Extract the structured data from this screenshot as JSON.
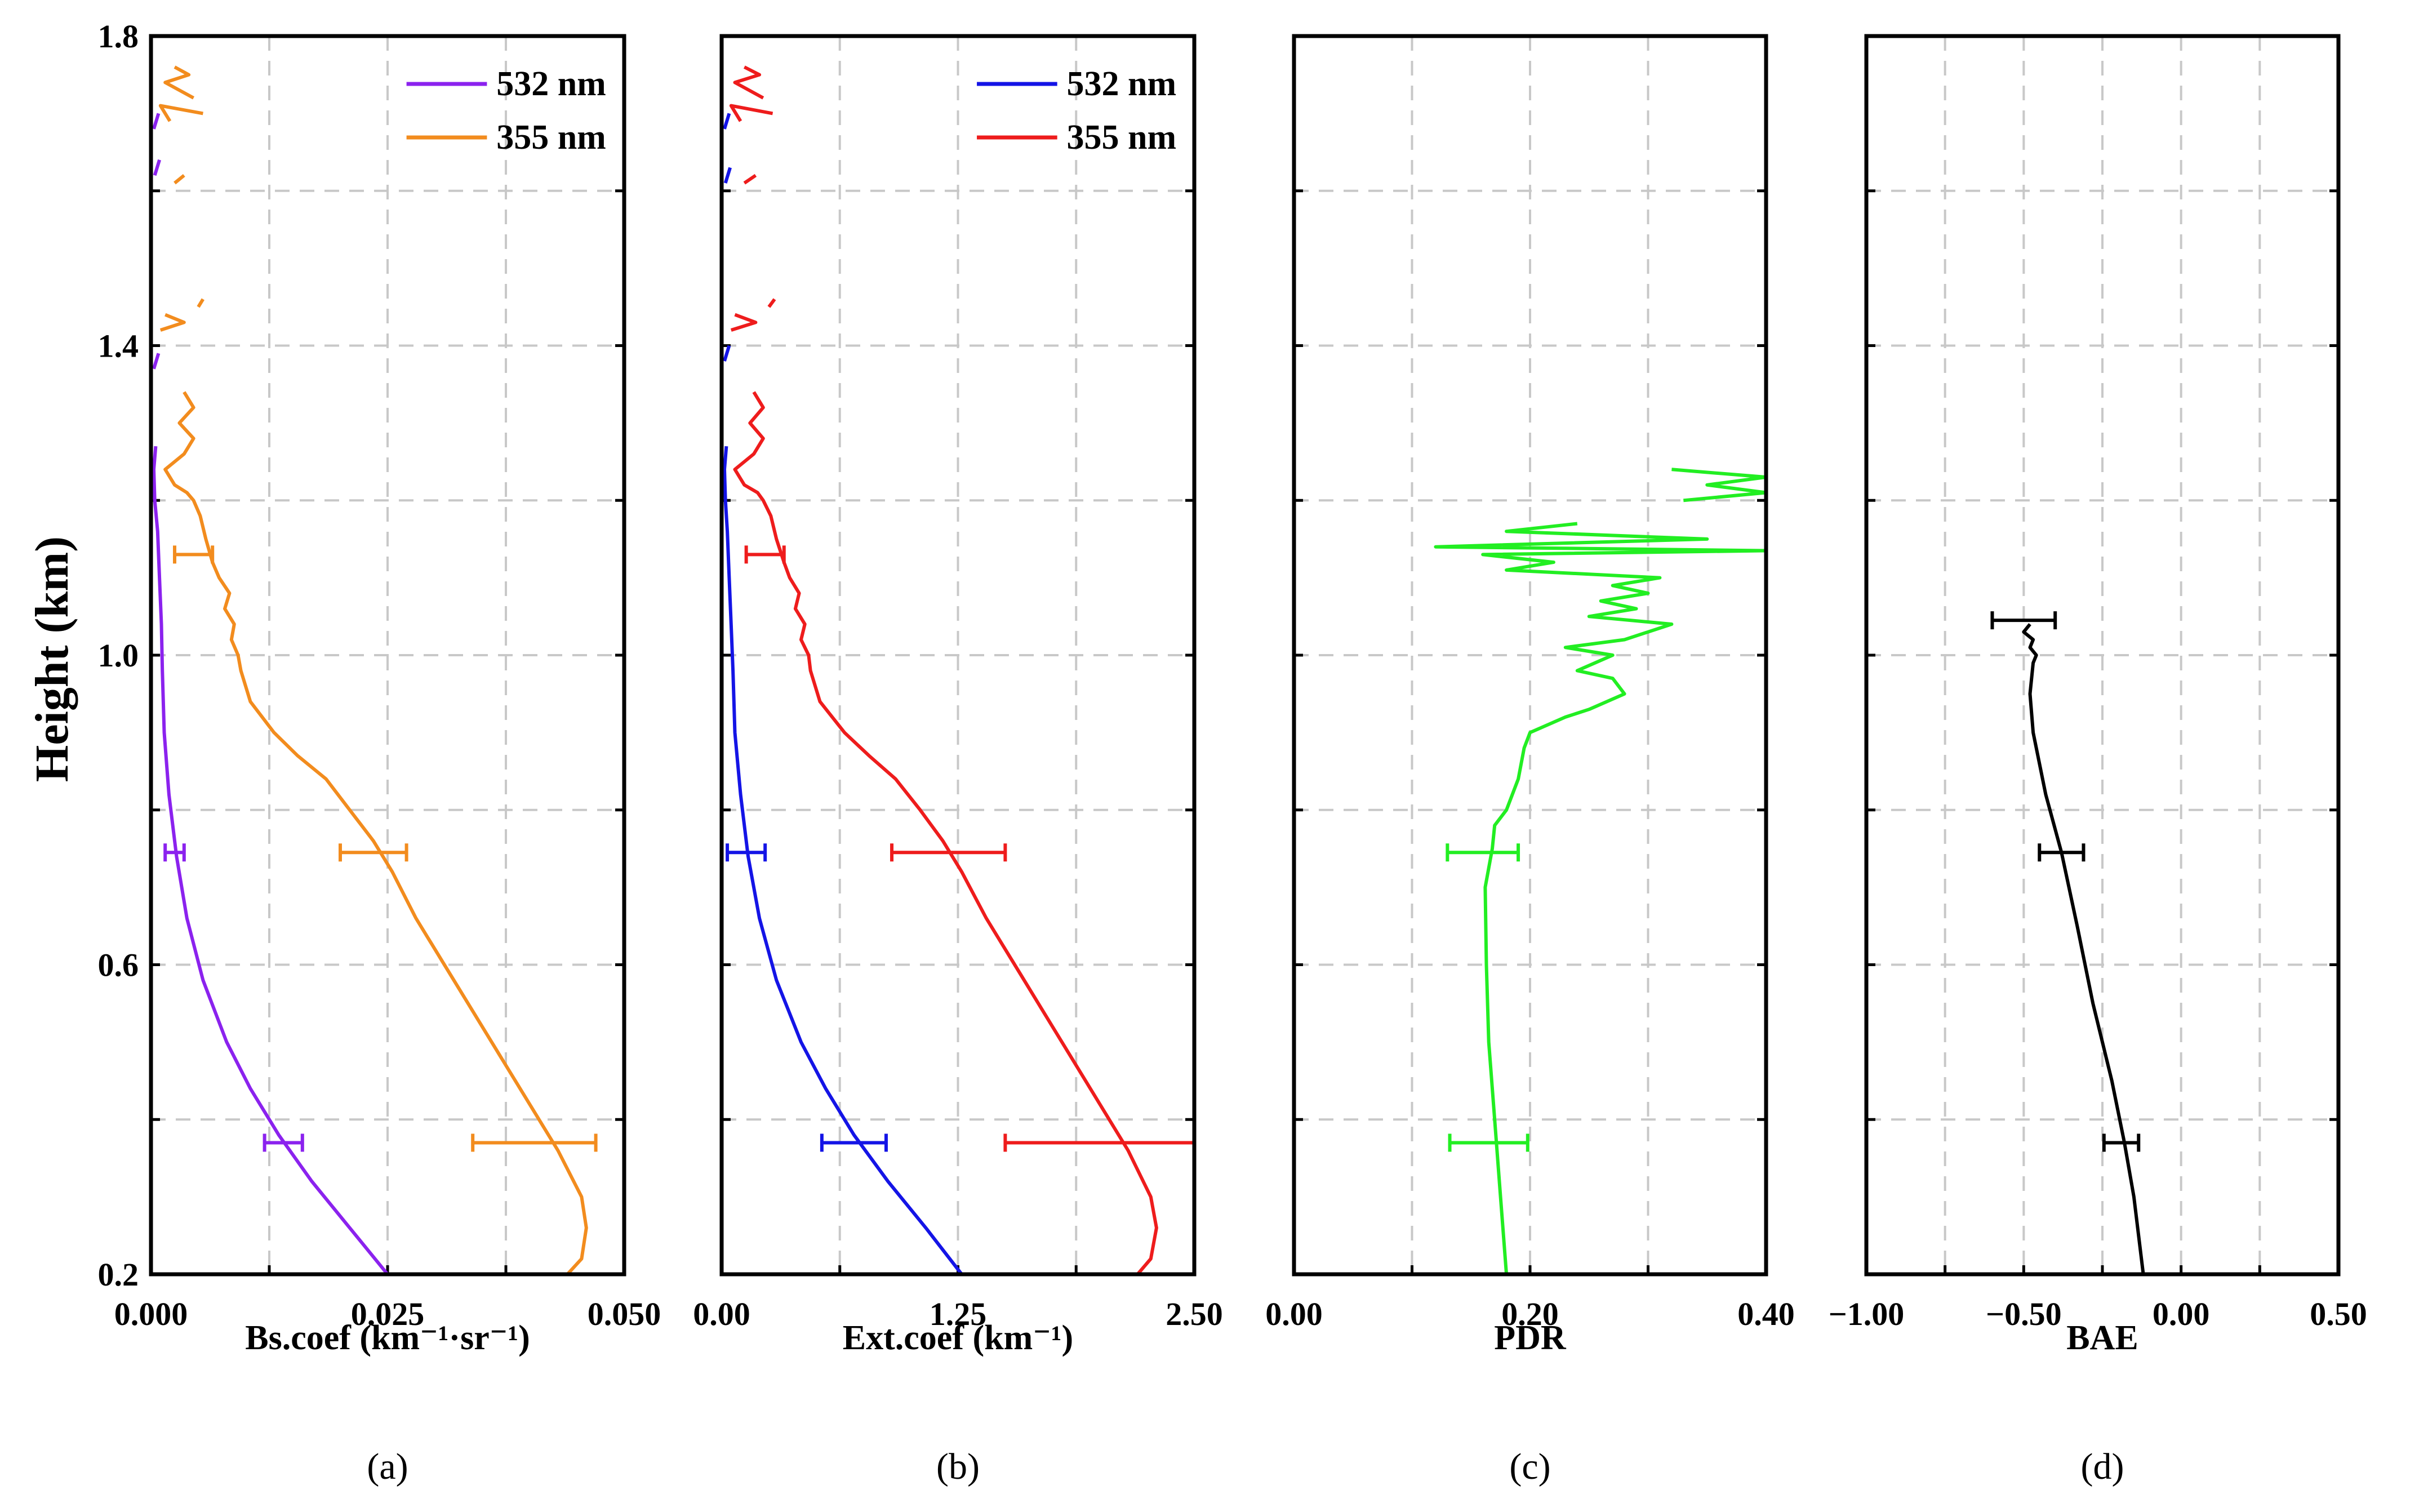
{
  "figure": {
    "ylabel": "Height (km)",
    "ylim": [
      0.2,
      1.8
    ],
    "yticks": [
      "0.2",
      "0.6",
      "1.0",
      "1.4",
      "1.8"
    ]
  },
  "chart_data": [
    {
      "type": "line",
      "panel_label": "(a)",
      "xlabel": "Bs.coef (km⁻¹·sr⁻¹)",
      "xlim": [
        0,
        0.05
      ],
      "xticks": [
        "0.000",
        "0.025",
        "0.050"
      ],
      "legend": {
        "position": "top-right"
      },
      "series": [
        {
          "name": "532 nm",
          "color": "#8b22ee",
          "points": [
            [
              0.025,
              0.2
            ],
            [
              0.021,
              0.26
            ],
            [
              0.017,
              0.32
            ],
            [
              0.0135,
              0.38
            ],
            [
              0.0105,
              0.44
            ],
            [
              0.008,
              0.5
            ],
            [
              0.0055,
              0.58
            ],
            [
              0.0038,
              0.66
            ],
            [
              0.0027,
              0.74
            ],
            [
              0.0019,
              0.82
            ],
            [
              0.0014,
              0.9
            ],
            [
              0.0012,
              0.98
            ],
            [
              0.0011,
              1.04
            ],
            [
              0.0009,
              1.1
            ],
            [
              0.0007,
              1.16
            ],
            [
              0.0004,
              1.2
            ],
            [
              0.0003,
              1.24
            ],
            [
              0.0005,
              1.27
            ]
          ],
          "fragments": [
            [
              [
                0.0003,
                1.37
              ],
              [
                0.0008,
                1.39
              ]
            ],
            [
              [
                0.0004,
                1.62
              ],
              [
                0.0009,
                1.64
              ]
            ],
            [
              [
                0.0003,
                1.68
              ],
              [
                0.0008,
                1.7
              ]
            ]
          ],
          "error_bars": [
            {
              "y": 0.745,
              "center": 0.0025,
              "err": 0.001
            },
            {
              "y": 0.37,
              "center": 0.014,
              "err": 0.002
            }
          ]
        },
        {
          "name": "355 nm",
          "color": "#f28c1e",
          "points": [
            [
              0.044,
              0.2
            ],
            [
              0.0455,
              0.22
            ],
            [
              0.046,
              0.26
            ],
            [
              0.0455,
              0.3
            ],
            [
              0.043,
              0.36
            ],
            [
              0.04,
              0.42
            ],
            [
              0.037,
              0.48
            ],
            [
              0.034,
              0.54
            ],
            [
              0.031,
              0.6
            ],
            [
              0.028,
              0.66
            ],
            [
              0.0255,
              0.72
            ],
            [
              0.0235,
              0.76
            ],
            [
              0.021,
              0.8
            ],
            [
              0.0185,
              0.84
            ],
            [
              0.0155,
              0.87
            ],
            [
              0.013,
              0.9
            ],
            [
              0.0105,
              0.94
            ],
            [
              0.0095,
              0.98
            ],
            [
              0.0092,
              1.0
            ],
            [
              0.0085,
              1.02
            ],
            [
              0.0088,
              1.04
            ],
            [
              0.0078,
              1.06
            ],
            [
              0.0083,
              1.08
            ],
            [
              0.0072,
              1.1
            ],
            [
              0.0065,
              1.12
            ],
            [
              0.0058,
              1.15
            ],
            [
              0.0052,
              1.18
            ],
            [
              0.0045,
              1.2
            ],
            [
              0.0038,
              1.21
            ],
            [
              0.0025,
              1.22
            ],
            [
              0.0015,
              1.24
            ],
            [
              0.0035,
              1.26
            ],
            [
              0.0045,
              1.28
            ],
            [
              0.003,
              1.3
            ],
            [
              0.0045,
              1.32
            ],
            [
              0.0035,
              1.34
            ]
          ],
          "fragments": [
            [
              [
                0.001,
                1.42
              ],
              [
                0.0035,
                1.43
              ],
              [
                0.0015,
                1.44
              ]
            ],
            [
              [
                0.005,
                1.45
              ],
              [
                0.0055,
                1.46
              ]
            ],
            [
              [
                0.0025,
                1.61
              ],
              [
                0.0035,
                1.62
              ]
            ],
            [
              [
                0.002,
                1.69
              ],
              [
                0.001,
                1.71
              ],
              [
                0.0055,
                1.7
              ]
            ],
            [
              [
                0.0045,
                1.72
              ],
              [
                0.0015,
                1.74
              ],
              [
                0.004,
                1.75
              ],
              [
                0.0025,
                1.76
              ]
            ]
          ],
          "error_bars": [
            {
              "y": 1.13,
              "center": 0.0045,
              "err": 0.002
            },
            {
              "y": 0.745,
              "center": 0.0235,
              "err": 0.0035
            },
            {
              "y": 0.37,
              "center": 0.0405,
              "err": 0.0065
            }
          ]
        }
      ]
    },
    {
      "type": "line",
      "panel_label": "(b)",
      "xlabel": "Ext.coef (km⁻¹)",
      "xlim": [
        0,
        2.5
      ],
      "xticks": [
        "0.00",
        "1.25",
        "2.50"
      ],
      "legend": {
        "position": "top-right"
      },
      "series": [
        {
          "name": "532 nm",
          "color": "#1414e6",
          "points": [
            [
              1.27,
              0.2
            ],
            [
              1.08,
              0.26
            ],
            [
              0.88,
              0.32
            ],
            [
              0.7,
              0.38
            ],
            [
              0.55,
              0.44
            ],
            [
              0.42,
              0.5
            ],
            [
              0.29,
              0.58
            ],
            [
              0.2,
              0.66
            ],
            [
              0.14,
              0.74
            ],
            [
              0.1,
              0.82
            ],
            [
              0.07,
              0.9
            ],
            [
              0.06,
              0.98
            ],
            [
              0.05,
              1.04
            ],
            [
              0.04,
              1.1
            ],
            [
              0.03,
              1.16
            ],
            [
              0.02,
              1.2
            ],
            [
              0.015,
              1.24
            ],
            [
              0.025,
              1.27
            ]
          ],
          "fragments": [
            [
              [
                0.015,
                1.38
              ],
              [
                0.04,
                1.4
              ]
            ],
            [
              [
                0.02,
                1.61
              ],
              [
                0.045,
                1.63
              ]
            ],
            [
              [
                0.015,
                1.68
              ],
              [
                0.04,
                1.7
              ]
            ]
          ],
          "error_bars": [
            {
              "y": 0.745,
              "center": 0.13,
              "err": 0.1
            },
            {
              "y": 0.37,
              "center": 0.7,
              "err": 0.17
            }
          ]
        },
        {
          "name": "355 nm",
          "color": "#ee1c1c",
          "points": [
            [
              2.2,
              0.2
            ],
            [
              2.27,
              0.22
            ],
            [
              2.3,
              0.26
            ],
            [
              2.27,
              0.3
            ],
            [
              2.15,
              0.36
            ],
            [
              2.0,
              0.42
            ],
            [
              1.85,
              0.48
            ],
            [
              1.7,
              0.54
            ],
            [
              1.55,
              0.6
            ],
            [
              1.4,
              0.66
            ],
            [
              1.27,
              0.72
            ],
            [
              1.17,
              0.76
            ],
            [
              1.05,
              0.8
            ],
            [
              0.92,
              0.84
            ],
            [
              0.78,
              0.87
            ],
            [
              0.65,
              0.9
            ],
            [
              0.52,
              0.94
            ],
            [
              0.47,
              0.98
            ],
            [
              0.46,
              1.0
            ],
            [
              0.42,
              1.02
            ],
            [
              0.44,
              1.04
            ],
            [
              0.39,
              1.06
            ],
            [
              0.41,
              1.08
            ],
            [
              0.36,
              1.1
            ],
            [
              0.33,
              1.12
            ],
            [
              0.29,
              1.15
            ],
            [
              0.26,
              1.18
            ],
            [
              0.22,
              1.2
            ],
            [
              0.19,
              1.21
            ],
            [
              0.12,
              1.22
            ],
            [
              0.07,
              1.24
            ],
            [
              0.17,
              1.26
            ],
            [
              0.22,
              1.28
            ],
            [
              0.15,
              1.3
            ],
            [
              0.22,
              1.32
            ],
            [
              0.17,
              1.34
            ]
          ],
          "fragments": [
            [
              [
                0.05,
                1.42
              ],
              [
                0.18,
                1.43
              ],
              [
                0.07,
                1.44
              ]
            ],
            [
              [
                0.25,
                1.45
              ],
              [
                0.28,
                1.46
              ]
            ],
            [
              [
                0.12,
                1.61
              ],
              [
                0.18,
                1.62
              ]
            ],
            [
              [
                0.1,
                1.69
              ],
              [
                0.05,
                1.71
              ],
              [
                0.27,
                1.7
              ]
            ],
            [
              [
                0.22,
                1.72
              ],
              [
                0.07,
                1.74
              ],
              [
                0.2,
                1.75
              ],
              [
                0.12,
                1.76
              ]
            ]
          ],
          "error_bars": [
            {
              "y": 1.13,
              "center": 0.23,
              "err": 0.1
            },
            {
              "y": 0.745,
              "center": 1.2,
              "err": 0.3
            },
            {
              "y": 0.37,
              "center": 2.0,
              "err": 0.5
            }
          ]
        }
      ]
    },
    {
      "type": "line",
      "panel_label": "(c)",
      "xlabel": "PDR",
      "xlim": [
        0,
        0.4
      ],
      "xticks": [
        "0.00",
        "0.20",
        "0.40"
      ],
      "series": [
        {
          "name": "PDR",
          "color": "#22ee22",
          "points": [
            [
              0.18,
              0.2
            ],
            [
              0.175,
              0.3
            ],
            [
              0.17,
              0.4
            ],
            [
              0.165,
              0.5
            ],
            [
              0.163,
              0.6
            ],
            [
              0.162,
              0.7
            ],
            [
              0.168,
              0.75
            ],
            [
              0.17,
              0.78
            ],
            [
              0.18,
              0.8
            ],
            [
              0.19,
              0.84
            ],
            [
              0.195,
              0.88
            ],
            [
              0.2,
              0.9
            ],
            [
              0.23,
              0.92
            ],
            [
              0.25,
              0.93
            ],
            [
              0.28,
              0.95
            ],
            [
              0.27,
              0.97
            ],
            [
              0.24,
              0.98
            ],
            [
              0.27,
              1.0
            ],
            [
              0.23,
              1.01
            ],
            [
              0.28,
              1.02
            ],
            [
              0.32,
              1.04
            ],
            [
              0.25,
              1.05
            ],
            [
              0.29,
              1.06
            ],
            [
              0.26,
              1.07
            ],
            [
              0.3,
              1.08
            ],
            [
              0.27,
              1.09
            ],
            [
              0.31,
              1.1
            ],
            [
              0.18,
              1.11
            ],
            [
              0.22,
              1.12
            ],
            [
              0.16,
              1.13
            ],
            [
              0.4,
              1.135
            ],
            [
              0.12,
              1.14
            ],
            [
              0.35,
              1.15
            ],
            [
              0.18,
              1.16
            ],
            [
              0.24,
              1.17
            ]
          ],
          "fragments": [
            [
              [
                0.33,
                1.2
              ],
              [
                0.4,
                1.21
              ],
              [
                0.35,
                1.22
              ],
              [
                0.4,
                1.23
              ],
              [
                0.32,
                1.24
              ]
            ]
          ],
          "error_bars": [
            {
              "y": 0.745,
              "center": 0.16,
              "err": 0.03
            },
            {
              "y": 0.37,
              "center": 0.165,
              "err": 0.033
            }
          ]
        }
      ]
    },
    {
      "type": "line",
      "panel_label": "(d)",
      "xlabel": "BAE",
      "xlim": [
        -1.0,
        0.5
      ],
      "xticks": [
        "−1.00",
        "−0.50",
        "0.00",
        "0.50"
      ],
      "series": [
        {
          "name": "BAE",
          "color": "#000000",
          "points": [
            [
              -0.12,
              0.2
            ],
            [
              -0.15,
              0.3
            ],
            [
              -0.18,
              0.37
            ],
            [
              -0.22,
              0.45
            ],
            [
              -0.28,
              0.55
            ],
            [
              -0.33,
              0.65
            ],
            [
              -0.38,
              0.745
            ],
            [
              -0.43,
              0.82
            ],
            [
              -0.47,
              0.9
            ],
            [
              -0.48,
              0.95
            ],
            [
              -0.47,
              0.99
            ],
            [
              -0.46,
              1.0
            ],
            [
              -0.48,
              1.01
            ],
            [
              -0.47,
              1.02
            ],
            [
              -0.5,
              1.03
            ],
            [
              -0.48,
              1.04
            ]
          ],
          "fragments": [],
          "error_bars": [
            {
              "y": 1.045,
              "center": -0.5,
              "err": 0.1
            },
            {
              "y": 0.745,
              "center": -0.38,
              "err": 0.07
            },
            {
              "y": 0.37,
              "center": -0.19,
              "err": 0.055
            }
          ]
        }
      ]
    }
  ]
}
